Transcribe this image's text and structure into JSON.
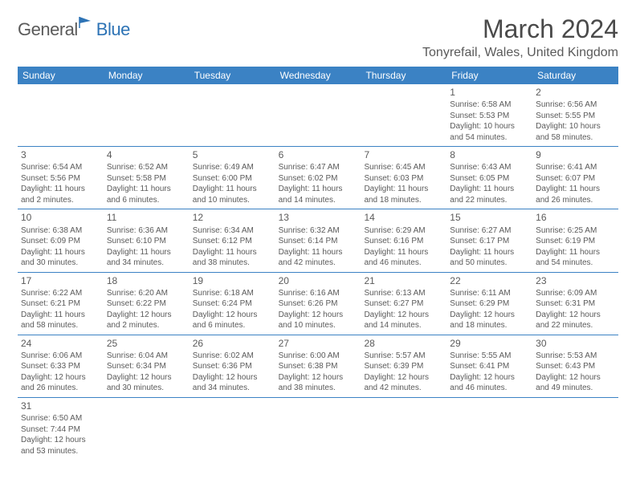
{
  "logo": {
    "text1": "General",
    "text2": "Blue"
  },
  "title": "March 2024",
  "location": "Tonyrefail, Wales, United Kingdom",
  "colors": {
    "header_bg": "#3b82c4",
    "header_text": "#ffffff",
    "text": "#5a5a5a",
    "logo_gray": "#5a5a5a",
    "logo_blue": "#2d73b5",
    "border": "#3b82c4"
  },
  "weekdays": [
    "Sunday",
    "Monday",
    "Tuesday",
    "Wednesday",
    "Thursday",
    "Friday",
    "Saturday"
  ],
  "weeks": [
    [
      null,
      null,
      null,
      null,
      null,
      {
        "n": "1",
        "sr": "6:58 AM",
        "ss": "5:53 PM",
        "dl": "10 hours and 54 minutes."
      },
      {
        "n": "2",
        "sr": "6:56 AM",
        "ss": "5:55 PM",
        "dl": "10 hours and 58 minutes."
      }
    ],
    [
      {
        "n": "3",
        "sr": "6:54 AM",
        "ss": "5:56 PM",
        "dl": "11 hours and 2 minutes."
      },
      {
        "n": "4",
        "sr": "6:52 AM",
        "ss": "5:58 PM",
        "dl": "11 hours and 6 minutes."
      },
      {
        "n": "5",
        "sr": "6:49 AM",
        "ss": "6:00 PM",
        "dl": "11 hours and 10 minutes."
      },
      {
        "n": "6",
        "sr": "6:47 AM",
        "ss": "6:02 PM",
        "dl": "11 hours and 14 minutes."
      },
      {
        "n": "7",
        "sr": "6:45 AM",
        "ss": "6:03 PM",
        "dl": "11 hours and 18 minutes."
      },
      {
        "n": "8",
        "sr": "6:43 AM",
        "ss": "6:05 PM",
        "dl": "11 hours and 22 minutes."
      },
      {
        "n": "9",
        "sr": "6:41 AM",
        "ss": "6:07 PM",
        "dl": "11 hours and 26 minutes."
      }
    ],
    [
      {
        "n": "10",
        "sr": "6:38 AM",
        "ss": "6:09 PM",
        "dl": "11 hours and 30 minutes."
      },
      {
        "n": "11",
        "sr": "6:36 AM",
        "ss": "6:10 PM",
        "dl": "11 hours and 34 minutes."
      },
      {
        "n": "12",
        "sr": "6:34 AM",
        "ss": "6:12 PM",
        "dl": "11 hours and 38 minutes."
      },
      {
        "n": "13",
        "sr": "6:32 AM",
        "ss": "6:14 PM",
        "dl": "11 hours and 42 minutes."
      },
      {
        "n": "14",
        "sr": "6:29 AM",
        "ss": "6:16 PM",
        "dl": "11 hours and 46 minutes."
      },
      {
        "n": "15",
        "sr": "6:27 AM",
        "ss": "6:17 PM",
        "dl": "11 hours and 50 minutes."
      },
      {
        "n": "16",
        "sr": "6:25 AM",
        "ss": "6:19 PM",
        "dl": "11 hours and 54 minutes."
      }
    ],
    [
      {
        "n": "17",
        "sr": "6:22 AM",
        "ss": "6:21 PM",
        "dl": "11 hours and 58 minutes."
      },
      {
        "n": "18",
        "sr": "6:20 AM",
        "ss": "6:22 PM",
        "dl": "12 hours and 2 minutes."
      },
      {
        "n": "19",
        "sr": "6:18 AM",
        "ss": "6:24 PM",
        "dl": "12 hours and 6 minutes."
      },
      {
        "n": "20",
        "sr": "6:16 AM",
        "ss": "6:26 PM",
        "dl": "12 hours and 10 minutes."
      },
      {
        "n": "21",
        "sr": "6:13 AM",
        "ss": "6:27 PM",
        "dl": "12 hours and 14 minutes."
      },
      {
        "n": "22",
        "sr": "6:11 AM",
        "ss": "6:29 PM",
        "dl": "12 hours and 18 minutes."
      },
      {
        "n": "23",
        "sr": "6:09 AM",
        "ss": "6:31 PM",
        "dl": "12 hours and 22 minutes."
      }
    ],
    [
      {
        "n": "24",
        "sr": "6:06 AM",
        "ss": "6:33 PM",
        "dl": "12 hours and 26 minutes."
      },
      {
        "n": "25",
        "sr": "6:04 AM",
        "ss": "6:34 PM",
        "dl": "12 hours and 30 minutes."
      },
      {
        "n": "26",
        "sr": "6:02 AM",
        "ss": "6:36 PM",
        "dl": "12 hours and 34 minutes."
      },
      {
        "n": "27",
        "sr": "6:00 AM",
        "ss": "6:38 PM",
        "dl": "12 hours and 38 minutes."
      },
      {
        "n": "28",
        "sr": "5:57 AM",
        "ss": "6:39 PM",
        "dl": "12 hours and 42 minutes."
      },
      {
        "n": "29",
        "sr": "5:55 AM",
        "ss": "6:41 PM",
        "dl": "12 hours and 46 minutes."
      },
      {
        "n": "30",
        "sr": "5:53 AM",
        "ss": "6:43 PM",
        "dl": "12 hours and 49 minutes."
      }
    ],
    [
      {
        "n": "31",
        "sr": "6:50 AM",
        "ss": "7:44 PM",
        "dl": "12 hours and 53 minutes."
      },
      null,
      null,
      null,
      null,
      null,
      null
    ]
  ],
  "labels": {
    "sunrise": "Sunrise:",
    "sunset": "Sunset:",
    "daylight": "Daylight:"
  }
}
